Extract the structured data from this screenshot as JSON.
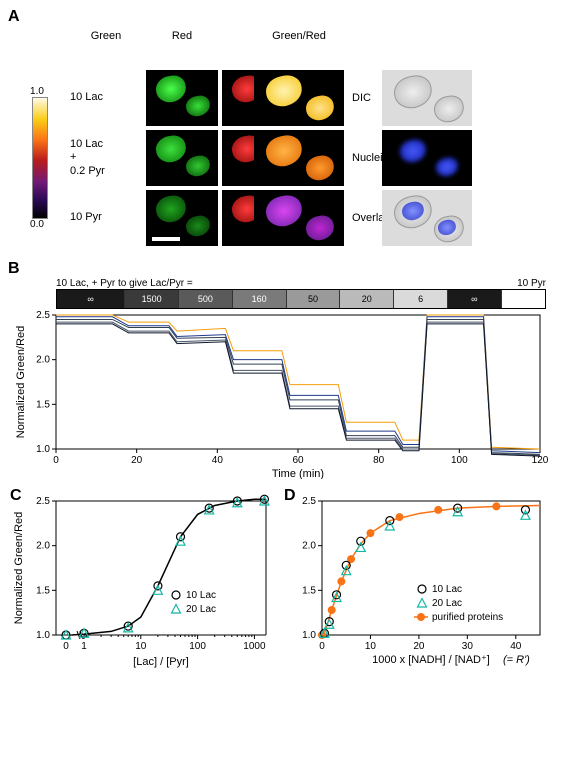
{
  "panelA": {
    "label": "A",
    "col_headers": [
      "Green",
      "Red",
      "Green/Red"
    ],
    "row_labels": [
      "10 Lac",
      "10 Lac\n+\n0.2 Pyr",
      "10 Pyr"
    ],
    "side_labels": [
      "DIC",
      "Nuclei",
      "Overlay"
    ],
    "colorbar": {
      "max": "1.0",
      "min": "0.0"
    },
    "colors": {
      "green": "#15d622",
      "red": "#e01515",
      "ratio_high": "#ffd545",
      "ratio_mid": "#f97316",
      "ratio_low": "#8a2be2",
      "dic": "#c7c7c7",
      "nuclei": "#2a3bff",
      "overlay": "#9aa7ff"
    }
  },
  "panelB": {
    "label": "B",
    "condbar_title_left": "10 Lac, + Pyr to give Lac/Pyr =",
    "condbar_title_right": "10 Pyr",
    "segments": [
      {
        "label": "∞",
        "width": 14,
        "shade": "#1a1a1a",
        "fg": "#ffffff"
      },
      {
        "label": "1500",
        "width": 11,
        "shade": "#3a3a3a",
        "fg": "#ffffff"
      },
      {
        "label": "500",
        "width": 11,
        "shade": "#5a5a5a",
        "fg": "#ffffff"
      },
      {
        "label": "160",
        "width": 11,
        "shade": "#7a7a7a",
        "fg": "#ffffff"
      },
      {
        "label": "50",
        "width": 11,
        "shade": "#9a9a9a",
        "fg": "#000000"
      },
      {
        "label": "20",
        "width": 11,
        "shade": "#bababa",
        "fg": "#000000"
      },
      {
        "label": "6",
        "width": 11,
        "shade": "#dadada",
        "fg": "#000000"
      },
      {
        "label": "∞",
        "width": 11,
        "shade": "#1a1a1a",
        "fg": "#ffffff"
      },
      {
        "label": "",
        "width": 9,
        "shade": "#ffffff",
        "fg": "#000000"
      }
    ],
    "xlabel": "Time (min)",
    "ylabel": "Normalized Green/Red",
    "xlim": [
      0,
      120
    ],
    "ylim": [
      1.0,
      2.5
    ],
    "xticks": [
      0,
      20,
      40,
      60,
      80,
      100,
      120
    ],
    "yticks": [
      1.0,
      1.5,
      2.0,
      2.5
    ],
    "line_colors": [
      "#f59e0b",
      "#1e3a8a",
      "#334155",
      "#475569",
      "#0f172a"
    ],
    "line_width": 1,
    "traces": [
      [
        [
          0,
          2.5
        ],
        [
          14,
          2.5
        ],
        [
          18,
          2.42
        ],
        [
          28,
          2.42
        ],
        [
          30,
          2.32
        ],
        [
          42,
          2.35
        ],
        [
          44,
          2.1
        ],
        [
          56,
          2.1
        ],
        [
          58,
          1.72
        ],
        [
          70,
          1.72
        ],
        [
          72,
          1.3
        ],
        [
          84,
          1.3
        ],
        [
          86,
          1.1
        ],
        [
          90,
          1.1
        ],
        [
          92,
          2.5
        ],
        [
          106,
          2.5
        ],
        [
          108,
          1.02
        ],
        [
          120,
          1.0
        ]
      ],
      [
        [
          0,
          2.48
        ],
        [
          14,
          2.48
        ],
        [
          18,
          2.38
        ],
        [
          28,
          2.38
        ],
        [
          30,
          2.26
        ],
        [
          42,
          2.28
        ],
        [
          44,
          2.0
        ],
        [
          56,
          2.0
        ],
        [
          58,
          1.6
        ],
        [
          70,
          1.6
        ],
        [
          72,
          1.2
        ],
        [
          84,
          1.2
        ],
        [
          86,
          1.05
        ],
        [
          90,
          1.05
        ],
        [
          92,
          2.48
        ],
        [
          106,
          2.48
        ],
        [
          108,
          0.98
        ],
        [
          120,
          0.96
        ]
      ],
      [
        [
          0,
          2.45
        ],
        [
          14,
          2.45
        ],
        [
          18,
          2.36
        ],
        [
          28,
          2.36
        ],
        [
          30,
          2.24
        ],
        [
          42,
          2.25
        ],
        [
          44,
          1.95
        ],
        [
          56,
          1.95
        ],
        [
          58,
          1.55
        ],
        [
          70,
          1.55
        ],
        [
          72,
          1.15
        ],
        [
          84,
          1.15
        ],
        [
          86,
          1.02
        ],
        [
          90,
          1.02
        ],
        [
          92,
          2.45
        ],
        [
          106,
          2.45
        ],
        [
          108,
          0.96
        ],
        [
          120,
          0.94
        ]
      ],
      [
        [
          0,
          2.42
        ],
        [
          14,
          2.42
        ],
        [
          18,
          2.32
        ],
        [
          28,
          2.32
        ],
        [
          30,
          2.2
        ],
        [
          42,
          2.22
        ],
        [
          44,
          1.88
        ],
        [
          56,
          1.88
        ],
        [
          58,
          1.48
        ],
        [
          70,
          1.48
        ],
        [
          72,
          1.12
        ],
        [
          84,
          1.12
        ],
        [
          86,
          1.0
        ],
        [
          90,
          1.0
        ],
        [
          92,
          2.42
        ],
        [
          106,
          2.42
        ],
        [
          108,
          0.95
        ],
        [
          120,
          0.93
        ]
      ],
      [
        [
          0,
          2.4
        ],
        [
          14,
          2.4
        ],
        [
          18,
          2.3
        ],
        [
          28,
          2.3
        ],
        [
          30,
          2.18
        ],
        [
          42,
          2.2
        ],
        [
          44,
          1.85
        ],
        [
          56,
          1.85
        ],
        [
          58,
          1.45
        ],
        [
          70,
          1.45
        ],
        [
          72,
          1.1
        ],
        [
          84,
          1.1
        ],
        [
          86,
          0.98
        ],
        [
          90,
          0.98
        ],
        [
          92,
          2.4
        ],
        [
          106,
          2.4
        ],
        [
          108,
          0.94
        ],
        [
          120,
          0.92
        ]
      ]
    ]
  },
  "panelC": {
    "label": "C",
    "xlabel": "[Lac] / [Pyr]",
    "ylabel": "Normalized Green/Red",
    "ylim": [
      1.0,
      2.5
    ],
    "yticks": [
      1.0,
      1.5,
      2.0,
      2.5
    ],
    "xticks_log": [
      1,
      10,
      100,
      1000
    ],
    "zero_x": 0,
    "curve_color": "#000000",
    "curve_width": 1.5,
    "curve": [
      [
        0.6,
        1.0
      ],
      [
        1,
        1.01
      ],
      [
        3,
        1.04
      ],
      [
        6,
        1.1
      ],
      [
        10,
        1.2
      ],
      [
        20,
        1.55
      ],
      [
        50,
        2.1
      ],
      [
        100,
        2.35
      ],
      [
        200,
        2.45
      ],
      [
        500,
        2.5
      ],
      [
        1000,
        2.52
      ],
      [
        1600,
        2.52
      ]
    ],
    "series": [
      {
        "name": "10 Lac",
        "marker": "circle",
        "color": "#000000",
        "fill": "none",
        "points": [
          [
            0,
            1.0
          ],
          [
            1,
            1.02
          ],
          [
            6,
            1.1
          ],
          [
            20,
            1.55
          ],
          [
            50,
            2.1
          ],
          [
            160,
            2.42
          ],
          [
            500,
            2.5
          ],
          [
            1500,
            2.52
          ]
        ]
      },
      {
        "name": "20 Lac",
        "marker": "triangle",
        "color": "#14b8a6",
        "fill": "none",
        "points": [
          [
            0,
            1.0
          ],
          [
            1,
            1.02
          ],
          [
            6,
            1.08
          ],
          [
            20,
            1.5
          ],
          [
            50,
            2.05
          ],
          [
            160,
            2.4
          ],
          [
            500,
            2.48
          ],
          [
            1500,
            2.5
          ]
        ]
      }
    ],
    "legend": [
      "10 Lac",
      "20 Lac"
    ]
  },
  "panelD": {
    "label": "D",
    "xlabel_line1": "1000 x [NADH] / [NAD⁺]",
    "xlabel_line2": "(= R')",
    "ylabel": "",
    "xlim": [
      0,
      45
    ],
    "ylim": [
      1.0,
      2.5
    ],
    "xticks": [
      0,
      10,
      20,
      30,
      40
    ],
    "yticks": [
      1.0,
      1.5,
      2.0,
      2.5
    ],
    "curve_color": "#f97316",
    "curve_width": 1.5,
    "curve": [
      [
        0,
        1.0
      ],
      [
        1,
        1.1
      ],
      [
        2,
        1.28
      ],
      [
        4,
        1.6
      ],
      [
        6,
        1.85
      ],
      [
        8,
        2.02
      ],
      [
        10,
        2.14
      ],
      [
        14,
        2.28
      ],
      [
        20,
        2.36
      ],
      [
        28,
        2.42
      ],
      [
        36,
        2.44
      ],
      [
        45,
        2.45
      ]
    ],
    "curve_markers": [
      [
        0,
        1.0
      ],
      [
        2,
        1.28
      ],
      [
        4,
        1.6
      ],
      [
        6,
        1.85
      ],
      [
        10,
        2.14
      ],
      [
        16,
        2.32
      ],
      [
        24,
        2.4
      ],
      [
        36,
        2.44
      ]
    ],
    "series": [
      {
        "name": "10 Lac",
        "marker": "circle",
        "color": "#000000",
        "fill": "none",
        "points": [
          [
            0.5,
            1.02
          ],
          [
            1.5,
            1.15
          ],
          [
            3,
            1.45
          ],
          [
            5,
            1.78
          ],
          [
            8,
            2.05
          ],
          [
            14,
            2.28
          ],
          [
            28,
            2.42
          ],
          [
            42,
            2.4
          ]
        ]
      },
      {
        "name": "20 Lac",
        "marker": "triangle",
        "color": "#14b8a6",
        "fill": "none",
        "points": [
          [
            0.5,
            1.02
          ],
          [
            1.5,
            1.12
          ],
          [
            3,
            1.42
          ],
          [
            5,
            1.72
          ],
          [
            8,
            1.98
          ],
          [
            14,
            2.22
          ],
          [
            28,
            2.38
          ],
          [
            42,
            2.34
          ]
        ]
      }
    ],
    "legend": [
      "10 Lac",
      "20 Lac",
      "purified proteins"
    ]
  },
  "fonts": {
    "panel_label_size": 16,
    "axis_label_size": 11,
    "tick_label_size": 10,
    "legend_size": 10
  }
}
